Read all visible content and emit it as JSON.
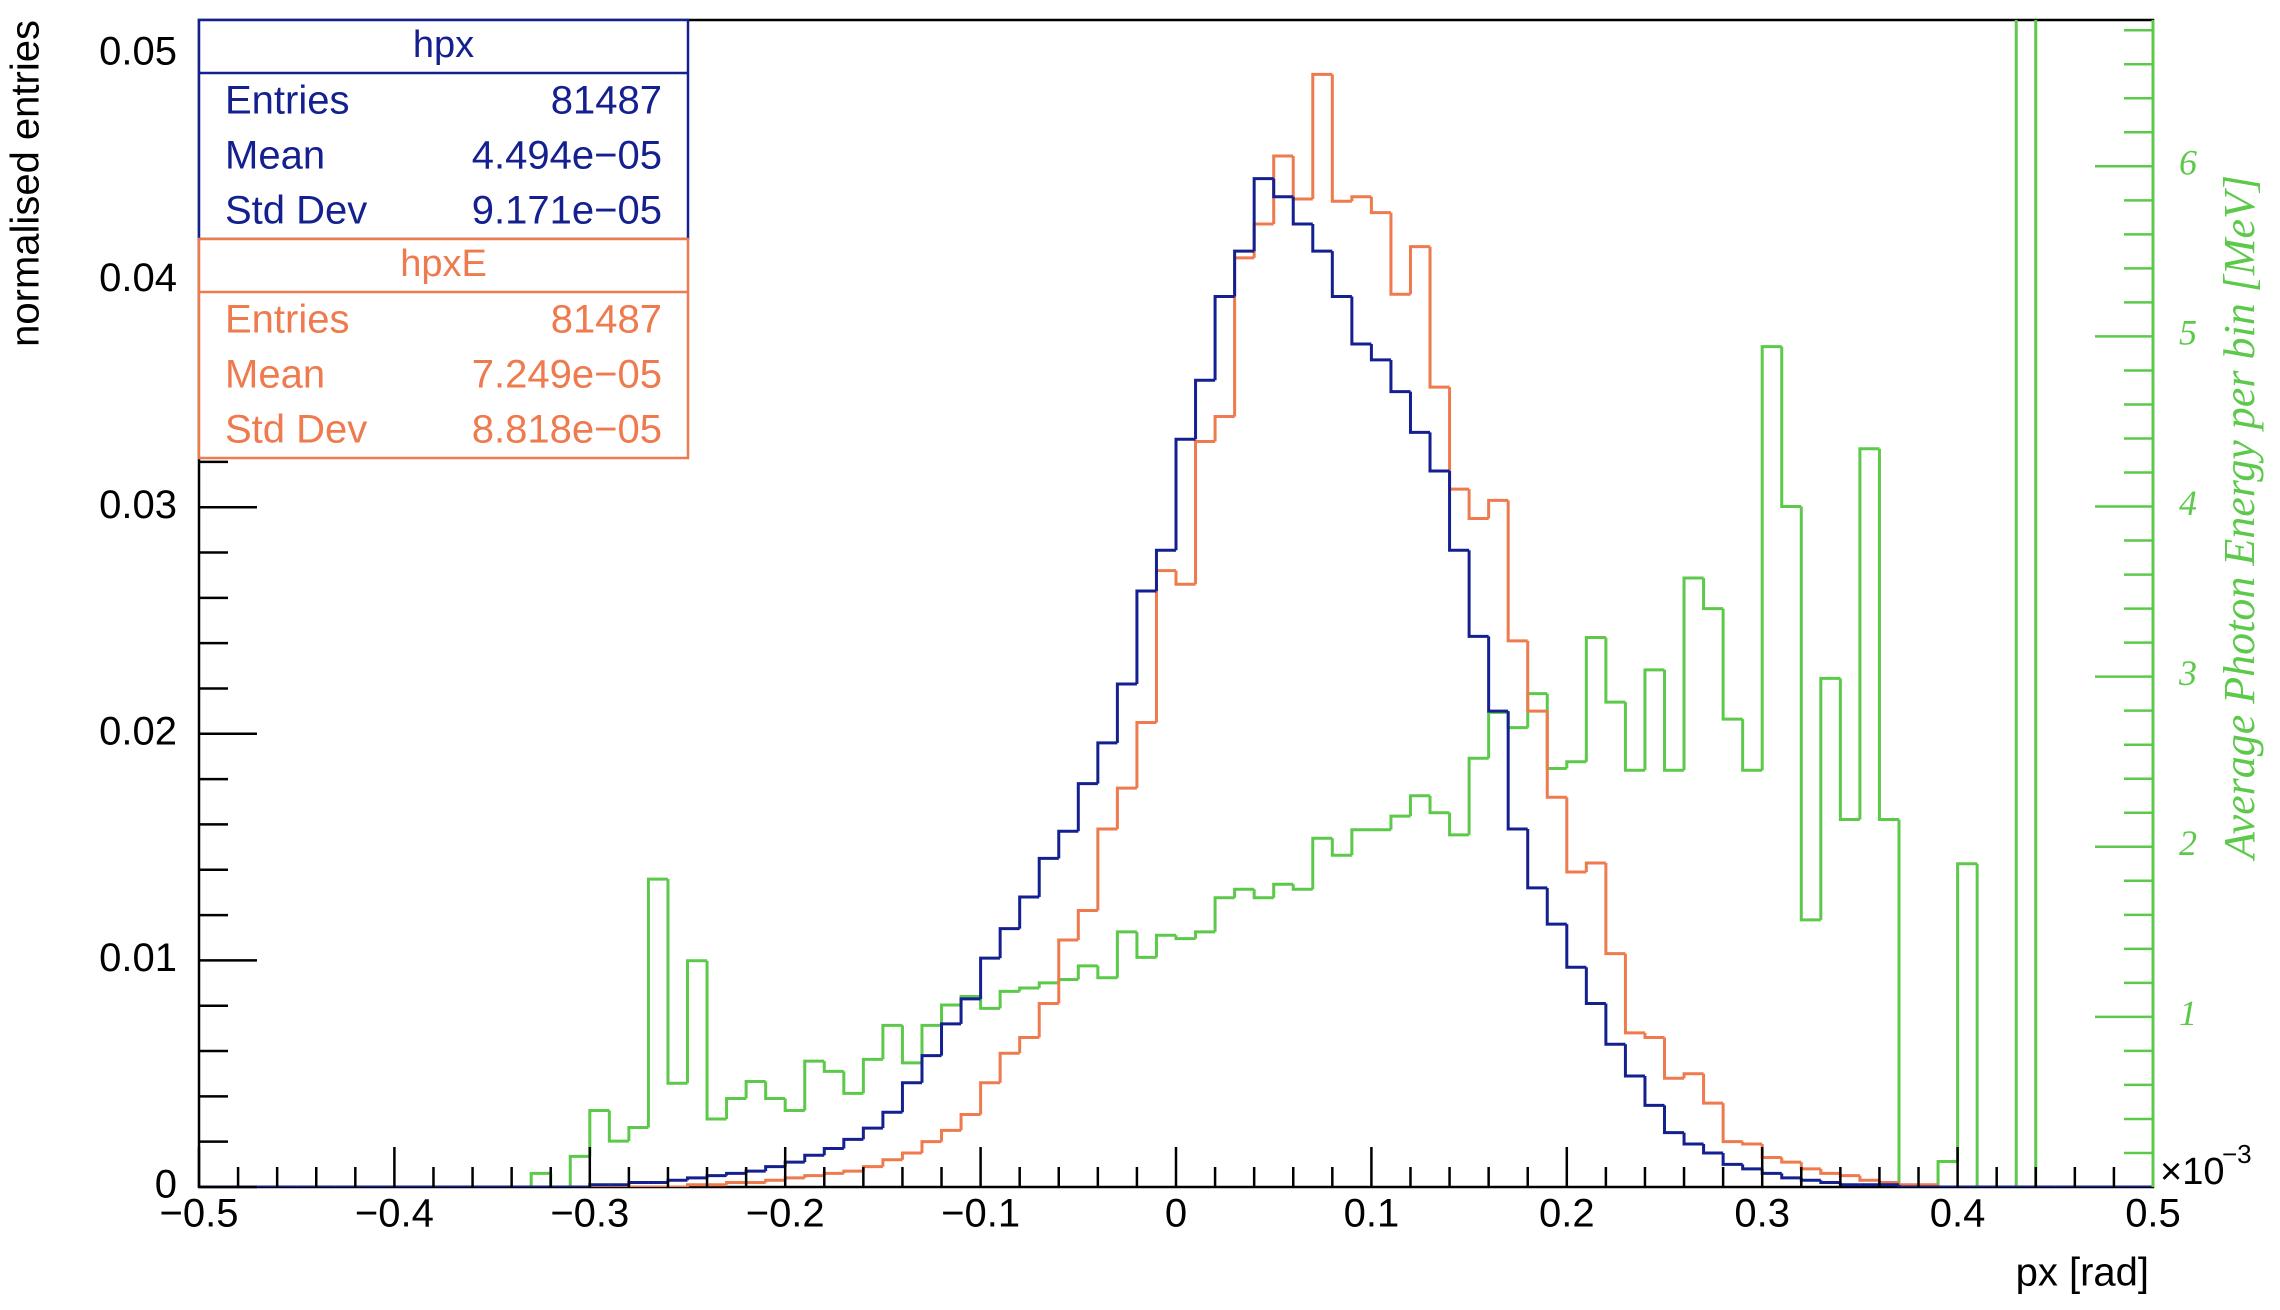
{
  "chart_data": {
    "type": "histogram",
    "x_label": "px [rad]",
    "y_label": "normalised entries",
    "y2_label": "Average Photon Energy per bin [MeV]",
    "y2_multiplier": "×10",
    "y2_exponent": "−3",
    "bins": [
      -0.5,
      -0.49,
      -0.48,
      -0.47,
      -0.46,
      -0.45,
      -0.44,
      -0.43,
      -0.42,
      -0.41,
      -0.4,
      -0.39,
      -0.38,
      -0.37,
      -0.36,
      -0.35,
      -0.34,
      -0.33,
      -0.32,
      -0.31,
      -0.3,
      -0.29,
      -0.28,
      -0.27,
      -0.26,
      -0.25,
      -0.24,
      -0.23,
      -0.22,
      -0.21,
      -0.2,
      -0.19,
      -0.18,
      -0.17,
      -0.16,
      -0.15,
      -0.14,
      -0.13,
      -0.12,
      -0.11,
      -0.1,
      -0.09,
      -0.08,
      -0.07,
      -0.06,
      -0.05,
      -0.04,
      -0.03,
      -0.02,
      -0.01,
      0,
      0.01,
      0.02,
      0.03,
      0.04,
      0.05,
      0.06,
      0.07,
      0.08,
      0.09,
      0.1,
      0.11,
      0.12,
      0.13,
      0.14,
      0.15,
      0.16,
      0.17,
      0.18,
      0.19,
      0.2,
      0.21,
      0.22,
      0.23,
      0.24,
      0.25,
      0.26,
      0.27,
      0.28,
      0.29,
      0.3,
      0.31,
      0.32,
      0.33,
      0.34,
      0.35,
      0.36,
      0.37,
      0.38,
      0.39,
      0.4,
      0.41,
      0.42,
      0.43,
      0.44,
      0.45,
      0.46,
      0.47,
      0.48,
      0.49,
      0.5
    ],
    "series": [
      {
        "name": "hpx",
        "color": "#14208f",
        "stats": [
          {
            "label": "Entries",
            "value": "81487"
          },
          {
            "label": "Mean",
            "value": "4.494e−05"
          },
          {
            "label": "Std Dev",
            "value": "9.171e−05"
          }
        ],
        "values": [
          0,
          0,
          0,
          0,
          0,
          0,
          0,
          0,
          0,
          0,
          0,
          0,
          0,
          0,
          0,
          0,
          0,
          0,
          0,
          0,
          0.0001,
          0.0001,
          0.0002,
          0.0002,
          0.0003,
          0.0004,
          0.0005,
          0.0006,
          0.0007,
          0.0009,
          0.0011,
          0.0014,
          0.0017,
          0.0021,
          0.0026,
          0.0033,
          0.0046,
          0.0058,
          0.0072,
          0.0083,
          0.0101,
          0.0114,
          0.0128,
          0.0145,
          0.0157,
          0.0178,
          0.0196,
          0.0222,
          0.0263,
          0.0281,
          0.033,
          0.0356,
          0.0393,
          0.0413,
          0.0445,
          0.0437,
          0.0425,
          0.0413,
          0.0393,
          0.0372,
          0.0365,
          0.0351,
          0.0333,
          0.0316,
          0.0281,
          0.0243,
          0.021,
          0.0158,
          0.0132,
          0.0116,
          0.0097,
          0.0081,
          0.0063,
          0.0049,
          0.0036,
          0.0024,
          0.0019,
          0.0015,
          0.001,
          0.0008,
          0.0006,
          0.0004,
          0.0003,
          0.0002,
          0.0001,
          0.0001,
          0.0001,
          0,
          0,
          0,
          0,
          0,
          0,
          0,
          0,
          0,
          0,
          0,
          0,
          0
        ]
      },
      {
        "name": "hpxE",
        "color": "#ee7a4e",
        "stats": [
          {
            "label": "Entries",
            "value": "81487"
          },
          {
            "label": "Mean",
            "value": "7.249e−05"
          },
          {
            "label": "Std Dev",
            "value": "8.818e−05"
          }
        ],
        "values": [
          0,
          0,
          0,
          0,
          0,
          0,
          0,
          0,
          0,
          0,
          0,
          0,
          0,
          0,
          0,
          0,
          0,
          0,
          0,
          0,
          0,
          0,
          0,
          0,
          0,
          0.0001,
          0.0001,
          0.0002,
          0.0002,
          0.0003,
          0.0004,
          0.0005,
          0.0006,
          0.0007,
          0.0009,
          0.0012,
          0.0015,
          0.002,
          0.0025,
          0.0032,
          0.0046,
          0.0059,
          0.0066,
          0.0081,
          0.0109,
          0.0122,
          0.0158,
          0.0176,
          0.0205,
          0.0272,
          0.0266,
          0.0329,
          0.034,
          0.041,
          0.0425,
          0.0455,
          0.0436,
          0.0491,
          0.0435,
          0.0437,
          0.043,
          0.0394,
          0.0415,
          0.0353,
          0.0308,
          0.0295,
          0.0303,
          0.0241,
          0.021,
          0.0172,
          0.0139,
          0.0143,
          0.0103,
          0.0068,
          0.0066,
          0.0048,
          0.005,
          0.0037,
          0.002,
          0.0019,
          0.0013,
          0.0011,
          0.0008,
          0.0006,
          0.0005,
          0.0003,
          0.0002,
          0.0001,
          0.0001,
          0,
          0,
          0,
          0,
          0,
          0,
          0,
          0,
          0,
          0,
          0,
          0
        ]
      },
      {
        "color": "#5cc94a",
        "axis": "y2",
        "values": [
          0,
          0,
          0,
          0,
          0,
          0,
          0,
          0,
          0,
          0,
          0,
          0,
          0,
          0,
          0,
          0,
          0,
          0.08,
          0,
          0.18,
          0.45,
          0.27,
          0.35,
          1.81,
          0.61,
          1.33,
          0.4,
          0.52,
          0.62,
          0.52,
          0.45,
          0.74,
          0.68,
          0.55,
          0.75,
          0.95,
          0.73,
          0.95,
          1.07,
          1.12,
          1.05,
          1.15,
          1.17,
          1.2,
          1.22,
          1.3,
          1.23,
          1.5,
          1.35,
          1.48,
          1.46,
          1.5,
          1.7,
          1.75,
          1.7,
          1.78,
          1.75,
          2.05,
          1.95,
          2.1,
          2.1,
          2.18,
          2.3,
          2.2,
          2.07,
          2.52,
          2.79,
          2.7,
          2.9,
          2.46,
          2.5,
          3.23,
          2.85,
          2.45,
          3.04,
          2.45,
          3.58,
          3.4,
          2.75,
          2.45,
          4.94,
          4.0,
          1.57,
          2.99,
          2.16,
          4.34,
          2.16,
          0,
          0,
          0.15,
          1.9,
          0,
          0,
          7,
          0,
          0,
          0,
          0,
          0,
          0
        ]
      }
    ],
    "xlim": [
      -0.5,
      0.5
    ],
    "xticks": [
      {
        "value": -0.5,
        "label": "−0.5"
      },
      {
        "value": -0.4,
        "label": "−0.4"
      },
      {
        "value": -0.3,
        "label": "−0.3"
      },
      {
        "value": -0.2,
        "label": "−0.2"
      },
      {
        "value": -0.1,
        "label": "−0.1"
      },
      0,
      0.1,
      0.2,
      0.3,
      0.4,
      0.5
    ],
    "ylim": [
      0,
      0.0515
    ],
    "yticks": [
      0,
      0.01,
      0.02,
      0.03,
      0.04,
      0.05
    ],
    "y2lim": [
      0,
      6.86
    ],
    "y2ticks": [
      1,
      2,
      3,
      4,
      5,
      6
    ]
  }
}
